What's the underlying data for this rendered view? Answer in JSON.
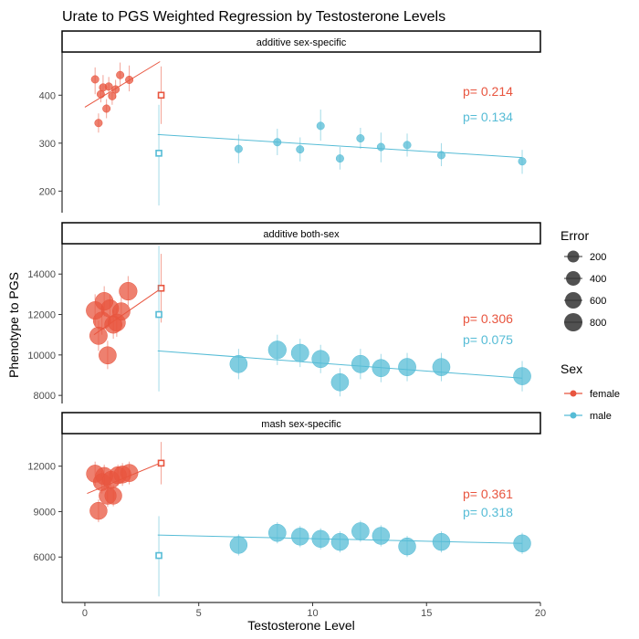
{
  "chart_data": {
    "type": "scatter",
    "title": "Urate to PGS Weighted Regression by Testosterone Levels",
    "xlabel": "Testosterone Level",
    "ylabel": "Phenotype to PGS",
    "xlim": [
      -1,
      20
    ],
    "x_ticks": [
      0,
      5,
      10,
      15,
      20
    ],
    "colors": {
      "female": "#e8553f",
      "male": "#56bcd6"
    },
    "legend": {
      "error_title": "Error",
      "error_values": [
        200,
        400,
        600,
        800
      ],
      "sex_title": "Sex",
      "sex_items": [
        "female",
        "male"
      ],
      "placement": "right"
    },
    "panels": [
      {
        "strip": "additive sex-specific",
        "ylim": [
          155,
          490
        ],
        "y_ticks": [
          200,
          300,
          400
        ],
        "p_female": "p= 0.214",
        "p_male": "p= 0.134",
        "female_line": [
          [
            0.0,
            375
          ],
          [
            3.3,
            470
          ]
        ],
        "male_line": [
          [
            3.2,
            318
          ],
          [
            19.2,
            270
          ]
        ],
        "female_points": [
          {
            "x": 0.45,
            "y": 433,
            "lo": 402,
            "hi": 458,
            "err": 25
          },
          {
            "x": 0.6,
            "y": 342,
            "lo": 322,
            "hi": 362,
            "err": 25
          },
          {
            "x": 0.7,
            "y": 402,
            "lo": 385,
            "hi": 422,
            "err": 25
          },
          {
            "x": 0.8,
            "y": 416,
            "lo": 396,
            "hi": 442,
            "err": 25
          },
          {
            "x": 0.95,
            "y": 372,
            "lo": 352,
            "hi": 392,
            "err": 25
          },
          {
            "x": 1.05,
            "y": 418,
            "lo": 398,
            "hi": 438,
            "err": 25
          },
          {
            "x": 1.2,
            "y": 398,
            "lo": 380,
            "hi": 418,
            "err": 25
          },
          {
            "x": 1.35,
            "y": 412,
            "lo": 393,
            "hi": 432,
            "err": 25
          },
          {
            "x": 1.55,
            "y": 442,
            "lo": 418,
            "hi": 468,
            "err": 25
          },
          {
            "x": 1.95,
            "y": 432,
            "lo": 408,
            "hi": 462,
            "err": 25
          },
          {
            "x": 3.35,
            "y": 400,
            "lo": 340,
            "hi": 460,
            "err": 25,
            "hollow": true
          }
        ],
        "male_points": [
          {
            "x": 3.25,
            "y": 279,
            "lo": 170,
            "hi": 380,
            "err": 25,
            "hollow": true
          },
          {
            "x": 6.75,
            "y": 288,
            "lo": 258,
            "hi": 318,
            "err": 25
          },
          {
            "x": 8.45,
            "y": 302,
            "lo": 275,
            "hi": 330,
            "err": 25
          },
          {
            "x": 9.45,
            "y": 287,
            "lo": 262,
            "hi": 312,
            "err": 25
          },
          {
            "x": 10.35,
            "y": 336,
            "lo": 305,
            "hi": 370,
            "err": 25
          },
          {
            "x": 11.2,
            "y": 268,
            "lo": 245,
            "hi": 292,
            "err": 25
          },
          {
            "x": 12.1,
            "y": 310,
            "lo": 288,
            "hi": 332,
            "err": 25
          },
          {
            "x": 13.0,
            "y": 292,
            "lo": 260,
            "hi": 322,
            "err": 25
          },
          {
            "x": 14.15,
            "y": 296,
            "lo": 272,
            "hi": 320,
            "err": 25
          },
          {
            "x": 15.65,
            "y": 275,
            "lo": 252,
            "hi": 300,
            "err": 25
          },
          {
            "x": 19.2,
            "y": 262,
            "lo": 236,
            "hi": 286,
            "err": 25
          }
        ]
      },
      {
        "strip": "additive both-sex",
        "ylim": [
          7600,
          15500
        ],
        "y_ticks": [
          8000,
          10000,
          12000,
          14000
        ],
        "p_female": "p= 0.306",
        "p_male": "p= 0.075",
        "female_line": [
          [
            0.4,
            11000
          ],
          [
            3.3,
            13250
          ]
        ],
        "male_line": [
          [
            3.2,
            10200
          ],
          [
            19.2,
            8850
          ]
        ],
        "female_points": [
          {
            "x": 0.45,
            "y": 12200,
            "lo": 11400,
            "hi": 13000,
            "err": 750
          },
          {
            "x": 0.6,
            "y": 10950,
            "lo": 10200,
            "hi": 11700,
            "err": 720
          },
          {
            "x": 0.75,
            "y": 11700,
            "lo": 11000,
            "hi": 12400,
            "err": 700
          },
          {
            "x": 0.85,
            "y": 12650,
            "lo": 11900,
            "hi": 13400,
            "err": 760
          },
          {
            "x": 1.0,
            "y": 9980,
            "lo": 9300,
            "hi": 10700,
            "err": 700
          },
          {
            "x": 1.1,
            "y": 12300,
            "lo": 11600,
            "hi": 13000,
            "err": 720
          },
          {
            "x": 1.25,
            "y": 11500,
            "lo": 10800,
            "hi": 12200,
            "err": 700
          },
          {
            "x": 1.4,
            "y": 11600,
            "lo": 10900,
            "hi": 12300,
            "err": 700
          },
          {
            "x": 1.6,
            "y": 12150,
            "lo": 11400,
            "hi": 12900,
            "err": 720
          },
          {
            "x": 1.9,
            "y": 13150,
            "lo": 12400,
            "hi": 13900,
            "err": 760
          },
          {
            "x": 3.35,
            "y": 13300,
            "lo": 11600,
            "hi": 15000,
            "err": 150,
            "hollow": true
          }
        ],
        "male_points": [
          {
            "x": 3.25,
            "y": 12000,
            "lo": 8200,
            "hi": 15400,
            "err": 150,
            "hollow": true
          },
          {
            "x": 6.75,
            "y": 9550,
            "lo": 8800,
            "hi": 10300,
            "err": 700
          },
          {
            "x": 8.45,
            "y": 10250,
            "lo": 9500,
            "hi": 11000,
            "err": 760
          },
          {
            "x": 9.45,
            "y": 10100,
            "lo": 9400,
            "hi": 10800,
            "err": 720
          },
          {
            "x": 10.35,
            "y": 9800,
            "lo": 9100,
            "hi": 10500,
            "err": 700
          },
          {
            "x": 11.2,
            "y": 8650,
            "lo": 7950,
            "hi": 9350,
            "err": 700
          },
          {
            "x": 12.1,
            "y": 9550,
            "lo": 8800,
            "hi": 10300,
            "err": 720
          },
          {
            "x": 13.0,
            "y": 9350,
            "lo": 8650,
            "hi": 10050,
            "err": 700
          },
          {
            "x": 14.15,
            "y": 9400,
            "lo": 8700,
            "hi": 10100,
            "err": 720
          },
          {
            "x": 15.65,
            "y": 9400,
            "lo": 8700,
            "hi": 10100,
            "err": 700
          },
          {
            "x": 19.2,
            "y": 8950,
            "lo": 8200,
            "hi": 9700,
            "err": 700
          }
        ]
      },
      {
        "strip": "mash sex-specific",
        "ylim": [
          3000,
          14150
        ],
        "y_ticks": [
          6000,
          9000,
          12000
        ],
        "p_female": "p= 0.361",
        "p_male": "p= 0.318",
        "female_line": [
          [
            0.1,
            10200
          ],
          [
            3.3,
            12200
          ]
        ],
        "male_line": [
          [
            3.2,
            7450
          ],
          [
            19.2,
            6900
          ]
        ],
        "female_points": [
          {
            "x": 0.45,
            "y": 11500,
            "lo": 10700,
            "hi": 12300,
            "err": 700
          },
          {
            "x": 0.6,
            "y": 9050,
            "lo": 8300,
            "hi": 9800,
            "err": 680
          },
          {
            "x": 0.75,
            "y": 10950,
            "lo": 10200,
            "hi": 11700,
            "err": 680
          },
          {
            "x": 0.85,
            "y": 11350,
            "lo": 10600,
            "hi": 12100,
            "err": 700
          },
          {
            "x": 1.0,
            "y": 10050,
            "lo": 9300,
            "hi": 10800,
            "err": 680
          },
          {
            "x": 1.15,
            "y": 11100,
            "lo": 10400,
            "hi": 11800,
            "err": 680
          },
          {
            "x": 1.25,
            "y": 10050,
            "lo": 9350,
            "hi": 10750,
            "err": 660
          },
          {
            "x": 1.45,
            "y": 11400,
            "lo": 10700,
            "hi": 12100,
            "err": 680
          },
          {
            "x": 1.65,
            "y": 11450,
            "lo": 10700,
            "hi": 12200,
            "err": 680
          },
          {
            "x": 1.95,
            "y": 11550,
            "lo": 10800,
            "hi": 12300,
            "err": 700
          },
          {
            "x": 3.35,
            "y": 12200,
            "lo": 10800,
            "hi": 13600,
            "err": 150,
            "hollow": true
          }
        ],
        "male_points": [
          {
            "x": 3.25,
            "y": 6100,
            "lo": 3400,
            "hi": 8700,
            "err": 150,
            "hollow": true
          },
          {
            "x": 6.75,
            "y": 6800,
            "lo": 6100,
            "hi": 7500,
            "err": 680
          },
          {
            "x": 8.45,
            "y": 7600,
            "lo": 6900,
            "hi": 8300,
            "err": 700
          },
          {
            "x": 9.45,
            "y": 7350,
            "lo": 6650,
            "hi": 8050,
            "err": 680
          },
          {
            "x": 10.35,
            "y": 7200,
            "lo": 6500,
            "hi": 7900,
            "err": 680
          },
          {
            "x": 11.2,
            "y": 7000,
            "lo": 6300,
            "hi": 7700,
            "err": 680
          },
          {
            "x": 12.1,
            "y": 7700,
            "lo": 7000,
            "hi": 8400,
            "err": 700
          },
          {
            "x": 13.0,
            "y": 7400,
            "lo": 6700,
            "hi": 8100,
            "err": 680
          },
          {
            "x": 14.15,
            "y": 6700,
            "lo": 6000,
            "hi": 7400,
            "err": 680
          },
          {
            "x": 15.65,
            "y": 7000,
            "lo": 6300,
            "hi": 7700,
            "err": 680
          },
          {
            "x": 19.2,
            "y": 6900,
            "lo": 6200,
            "hi": 7600,
            "err": 680
          }
        ]
      }
    ]
  }
}
